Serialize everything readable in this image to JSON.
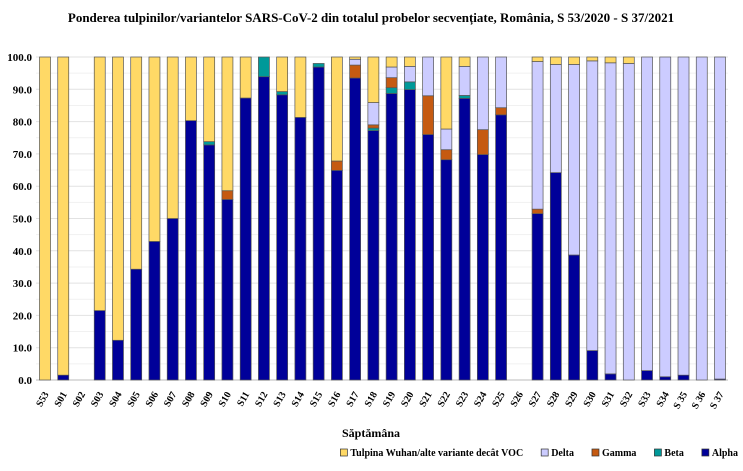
{
  "chart_data": {
    "type": "bar",
    "stacked": true,
    "title": "Ponderea tulpinilor/variantelor SARS-CoV-2 din totalul probelor secvențiate, România, S 53/2020 - S 37/2021",
    "xlabel": "Săptămâna",
    "ylabel": "",
    "ylim": [
      0,
      100
    ],
    "yticks": [
      "0.0",
      "10.0",
      "20.0",
      "30.0",
      "40.0",
      "50.0",
      "60.0",
      "70.0",
      "80.0",
      "90.0",
      "100.0"
    ],
    "grid": true,
    "legend_position": "bottom-right",
    "categories": [
      "S53",
      "S01",
      "S02",
      "S03",
      "S04",
      "S05",
      "S06",
      "S07",
      "S08",
      "S09",
      "S10",
      "S11",
      "S12",
      "S13",
      "S14",
      "S15",
      "S16",
      "S17",
      "S18",
      "S19",
      "S20",
      "S21",
      "S22",
      "S23",
      "S24",
      "S25",
      "S26",
      "S27",
      "S28",
      "S29",
      "S30",
      "S31",
      "S32",
      "S33",
      "S34",
      "S 35",
      "S 36",
      "S 37"
    ],
    "series": [
      {
        "name": "Alpha",
        "color": "#000099",
        "values": [
          0,
          1.5,
          0,
          21.5,
          12.3,
          34.3,
          42.9,
          50,
          80.3,
          72.8,
          55.9,
          87.3,
          93.9,
          88.3,
          81.3,
          96.9,
          64.9,
          93.5,
          77.2,
          88.7,
          89.9,
          76,
          68.2,
          87.2,
          69.8,
          82.1,
          0,
          51.5,
          64.2,
          38.7,
          9.1,
          1.9,
          0,
          2.9,
          1,
          1.5,
          0,
          0.3
        ]
      },
      {
        "name": "Beta",
        "color": "#009999",
        "values": [
          0,
          0,
          0,
          0,
          0,
          0,
          0,
          0,
          0,
          1,
          0,
          0,
          6.1,
          1,
          0,
          1.1,
          0,
          0,
          0.8,
          1.8,
          2.4,
          0,
          0,
          0.9,
          0,
          0,
          0,
          0,
          0,
          0,
          0,
          0,
          0,
          0,
          0,
          0,
          0,
          0
        ]
      },
      {
        "name": "Gamma",
        "color": "#C55A11",
        "values": [
          0,
          0,
          0,
          0,
          0,
          0,
          0,
          0,
          0,
          0,
          2.7,
          0,
          0,
          0,
          0,
          0,
          2.9,
          4,
          1,
          3.1,
          0,
          12,
          3.1,
          0,
          7.7,
          2.2,
          0,
          1.4,
          0,
          0,
          0,
          0,
          0,
          0,
          0,
          0,
          0,
          0
        ]
      },
      {
        "name": "Delta",
        "color": "#CCCCFF",
        "values": [
          0,
          0,
          0,
          0,
          0,
          0,
          0,
          0,
          0,
          0,
          0,
          0,
          0,
          0,
          0,
          0,
          0,
          1.8,
          6.9,
          3.3,
          4.8,
          12,
          6.4,
          9,
          22.5,
          15.7,
          0,
          45.7,
          33.5,
          59,
          89.7,
          96.3,
          98,
          97.1,
          99,
          98.5,
          100,
          99.7
        ]
      },
      {
        "name": "Tulpina Wuhan/alte variante decât VOC",
        "color": "#FFD966",
        "values": [
          100,
          98.5,
          0,
          78.5,
          87.7,
          65.7,
          57.1,
          50,
          19.7,
          26.2,
          41.4,
          12.7,
          0,
          10.7,
          18.7,
          0,
          32.2,
          0.7,
          14.1,
          3.1,
          2.9,
          0,
          22.3,
          2.9,
          0,
          0,
          0,
          1.4,
          2.3,
          2.3,
          1.2,
          1.8,
          2,
          0,
          0,
          0,
          0,
          0
        ]
      }
    ],
    "legend_order": [
      4,
      3,
      2,
      1,
      0
    ]
  }
}
